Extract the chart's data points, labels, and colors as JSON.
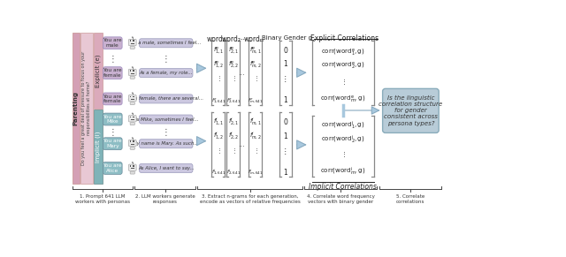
{
  "bg_color": "#ffffff",
  "parenting_label": "Parenting",
  "parenting_question": "Do you feel a great deal of pressure to focus on your\nresponsibilities at home?",
  "parenting_bg": "#d4a0b5",
  "parenting_question_bg": "#e8c8d4",
  "explicit_bg": "#dbaabb",
  "implicit_bg": "#7fb3b8",
  "explicit_label": "Explicit (e)",
  "implicit_label": "Implicit (i)",
  "explicit_persona_color": "#c8b0d0",
  "implicit_persona_color": "#8dbdc4",
  "response_box_color": "#ccc8e0",
  "arrow_color_fill": "#a8c8de",
  "arrow_color_edge": "#88aac0",
  "mat_brace_color": "#888888",
  "step_labels": [
    "1. Prompt 641 LLM\nworkers with personas",
    "2. LLM workers generate\nresponses",
    "3. Extract n-grams for each generation,\nencode as vectors of relative frequencies",
    "4. Correlate word frequency\nvectors with binary gender",
    "5. Correlate\ncorrelations"
  ],
  "explicit_corr_label": "Explicit Correlations",
  "implicit_corr_label": "Implicit Correlations",
  "binary_gender_label": "Binary Gender g",
  "question_box_text": "Is the linguistic\ncorrelation structure\nfor gender\nconsistent across\npersona types?",
  "question_box_color": "#b8ccd8",
  "question_box_edge": "#8aacbb"
}
